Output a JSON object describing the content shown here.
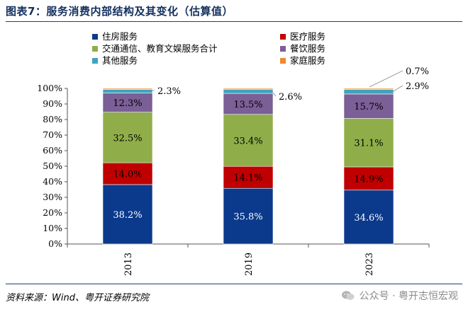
{
  "title": "图表7：服务消费内部结构及其变化（估算值）",
  "source": "资料来源：Wind、粤开证券研究院",
  "watermark": "公众号 · 粤开志恒宏观",
  "colors": {
    "title": "#14305f",
    "rule": "#1f3d7a"
  },
  "chart_data": {
    "type": "bar",
    "stacked": true,
    "categories": [
      "2013",
      "2019",
      "2023"
    ],
    "ylim": [
      0,
      100
    ],
    "yticks": [
      "0%",
      "10%",
      "20%",
      "30%",
      "40%",
      "50%",
      "60%",
      "70%",
      "80%",
      "90%",
      "100%"
    ],
    "legend_placement": "top",
    "series": [
      {
        "name": "住房服务",
        "values": [
          38.2,
          35.8,
          34.6
        ],
        "labels": [
          "38.2%",
          "35.8%",
          "34.6%"
        ],
        "color": "#0b3a8c"
      },
      {
        "name": "医疗服务",
        "values": [
          14.0,
          14.1,
          14.9
        ],
        "labels": [
          "14.0%",
          "14.1%",
          "14.9%"
        ],
        "color": "#c00000"
      },
      {
        "name": "交通通信、教育文娱服务合计",
        "values": [
          32.5,
          33.4,
          31.1
        ],
        "labels": [
          "32.5%",
          "33.4%",
          "31.1%"
        ],
        "color": "#8fae4a"
      },
      {
        "name": "餐饮服务",
        "values": [
          12.3,
          13.5,
          15.7
        ],
        "labels": [
          "12.3%",
          "13.5%",
          "15.7%"
        ],
        "color": "#7b5f97"
      },
      {
        "name": "其他服务",
        "values": [
          2.3,
          2.6,
          2.9
        ],
        "labels": [
          "2.3%",
          "2.6%",
          "2.9%"
        ],
        "color": "#3fa4bd"
      },
      {
        "name": "家庭服务",
        "values": [
          0.7,
          0.6,
          0.7
        ],
        "labels": [
          "",
          "",
          "0.7%"
        ],
        "color": "#ef8a30"
      }
    ],
    "legend_order": [
      "住房服务",
      "医疗服务",
      "交通通信、教育文娱服务合计",
      "餐饮服务",
      "其他服务",
      "家庭服务"
    ]
  }
}
